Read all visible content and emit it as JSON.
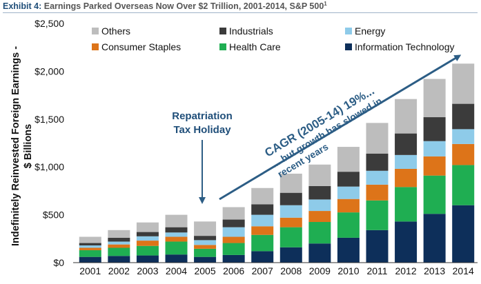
{
  "header": {
    "exhibit_label": "Exhibit 4:",
    "title": "Earnings Parked Overseas Now Over $2 Trillion, 2001-2014, S&P 500",
    "footnote_mark": "1"
  },
  "chart_data": {
    "type": "bar",
    "stacked": true,
    "title": "Earnings Parked Overseas Now Over $2 Trillion, 2001-2014, S&P 500",
    "ylabel_line1": "Indefinitely Reinvested Foreign Earnings -",
    "ylabel_line2": "$ Billions",
    "xlabel": "",
    "ylim": [
      0,
      2500
    ],
    "yticks": [
      0,
      500,
      1000,
      1500,
      2000,
      2500
    ],
    "ytick_labels": [
      "$0",
      "$500",
      "$1,000",
      "$1,500",
      "$2,000",
      "$2,500"
    ],
    "grid": false,
    "legend_position": "top",
    "categories": [
      "2001",
      "2002",
      "2003",
      "2004",
      "2005",
      "2006",
      "2007",
      "2008",
      "2009",
      "2010",
      "2011",
      "2012",
      "2013",
      "2014"
    ],
    "series": [
      {
        "name": "Information Technology",
        "color": "#0d2f5a",
        "values": [
          60,
          70,
          75,
          85,
          60,
          80,
          120,
          160,
          200,
          260,
          340,
          430,
          510,
          600
        ]
      },
      {
        "name": "Health Care",
        "color": "#1fae52",
        "values": [
          70,
          85,
          100,
          135,
          85,
          125,
          170,
          210,
          225,
          265,
          310,
          360,
          400,
          420
        ]
      },
      {
        "name": "Consumer Staples",
        "color": "#dd7419",
        "values": [
          25,
          35,
          55,
          50,
          40,
          65,
          90,
          100,
          115,
          140,
          165,
          190,
          200,
          220
        ]
      },
      {
        "name": "Energy",
        "color": "#8ecbe9",
        "values": [
          25,
          30,
          45,
          45,
          50,
          100,
          120,
          130,
          120,
          130,
          145,
          145,
          160,
          155
        ]
      },
      {
        "name": "Industrials",
        "color": "#3b3b3b",
        "values": [
          25,
          40,
          45,
          55,
          45,
          80,
          110,
          130,
          140,
          155,
          180,
          225,
          250,
          265
        ]
      },
      {
        "name": "Others",
        "color": "#bdbdbd",
        "values": [
          65,
          80,
          100,
          130,
          150,
          130,
          170,
          200,
          225,
          260,
          320,
          360,
          400,
          420
        ]
      }
    ],
    "legend_order": [
      "Others",
      "Industrials",
      "Energy",
      "Consumer Staples",
      "Health Care",
      "Information Technology"
    ],
    "annotations": {
      "holiday_line1": "Repatriation",
      "holiday_line2": "Tax Holiday",
      "cagr_line1": "CAGR (2005-14) 19%...",
      "cagr_line2": "... but growth has slowed in",
      "cagr_line3": "recent years"
    },
    "accent_color": "#2c5d85"
  }
}
